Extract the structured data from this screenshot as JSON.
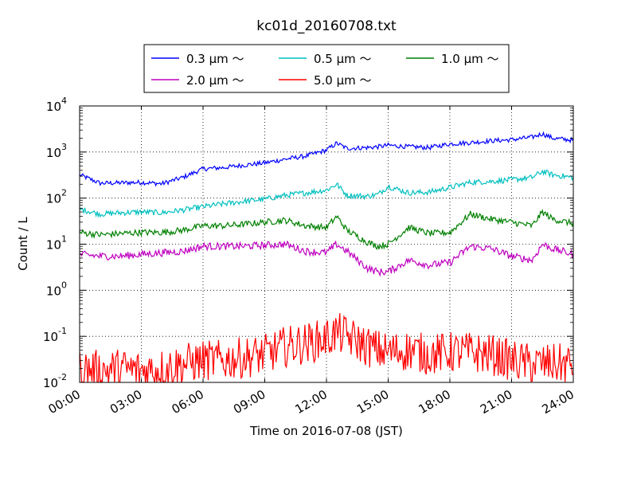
{
  "chart_data": {
    "type": "line",
    "title": "kc01d_20160708.txt",
    "xlabel": "Time on 2016-07-08 (JST)",
    "ylabel": "Count / L",
    "yscale": "log",
    "xlim": [
      "00:00",
      "24:00"
    ],
    "ylim": [
      0.01,
      10000
    ],
    "grid": true,
    "legend_position": "top-center",
    "x_ticks": [
      "00:00",
      "03:00",
      "06:00",
      "09:00",
      "12:00",
      "15:00",
      "18:00",
      "21:00",
      "24:00"
    ],
    "y_ticks": [
      {
        "base": "10",
        "exp": "-2"
      },
      {
        "base": "10",
        "exp": "-1"
      },
      {
        "base": "10",
        "exp": "0"
      },
      {
        "base": "10",
        "exp": "1"
      },
      {
        "base": "10",
        "exp": "2"
      },
      {
        "base": "10",
        "exp": "3"
      },
      {
        "base": "10",
        "exp": "4"
      }
    ],
    "x_hours": [
      0,
      1,
      2,
      3,
      4,
      5,
      6,
      7,
      8,
      9,
      10,
      11,
      12,
      12.5,
      13,
      14,
      14.5,
      15,
      16,
      17,
      18,
      19,
      20,
      21,
      22,
      22.5,
      23,
      24
    ],
    "series": [
      {
        "name": "0.3 μm ～",
        "color": "#0000ff",
        "noise": 0.05,
        "values": [
          320,
          210,
          215,
          220,
          205,
          280,
          430,
          460,
          520,
          580,
          700,
          820,
          1100,
          1550,
          1200,
          1250,
          1300,
          1400,
          1300,
          1250,
          1500,
          1600,
          1750,
          1850,
          2100,
          2500,
          2000,
          1800
        ]
      },
      {
        "name": "0.5 μm ～",
        "color": "#00bfbf",
        "noise": 0.06,
        "values": [
          58,
          45,
          48,
          50,
          48,
          55,
          65,
          75,
          85,
          95,
          115,
          130,
          150,
          200,
          115,
          110,
          120,
          180,
          130,
          135,
          170,
          220,
          230,
          250,
          280,
          380,
          320,
          280
        ]
      },
      {
        "name": "1.0 μm ～",
        "color": "#008000",
        "noise": 0.07,
        "values": [
          18,
          16,
          17,
          18,
          18,
          20,
          25,
          25,
          27,
          30,
          33,
          25,
          23,
          40,
          20,
          11,
          9,
          10,
          23,
          17,
          18,
          45,
          35,
          30,
          25,
          50,
          35,
          28
        ]
      },
      {
        "name": "2.0 μm ～",
        "color": "#bf00bf",
        "noise": 0.08,
        "values": [
          6,
          5.5,
          5.5,
          6,
          6.5,
          7,
          9,
          9,
          9,
          9.5,
          10,
          7,
          6.5,
          10,
          7,
          3,
          2.5,
          2.5,
          4.5,
          3.5,
          4,
          9,
          8,
          5.5,
          4.5,
          10,
          8,
          6
        ]
      },
      {
        "name": "5.0 μm ～",
        "color": "#ff0000",
        "noise": 0.45,
        "values": [
          0.02,
          0.018,
          0.02,
          0.018,
          0.02,
          0.025,
          0.03,
          0.03,
          0.035,
          0.04,
          0.06,
          0.07,
          0.09,
          0.12,
          0.1,
          0.06,
          0.05,
          0.045,
          0.05,
          0.04,
          0.045,
          0.045,
          0.04,
          0.03,
          0.025,
          0.025,
          0.025,
          0.025
        ]
      }
    ]
  }
}
